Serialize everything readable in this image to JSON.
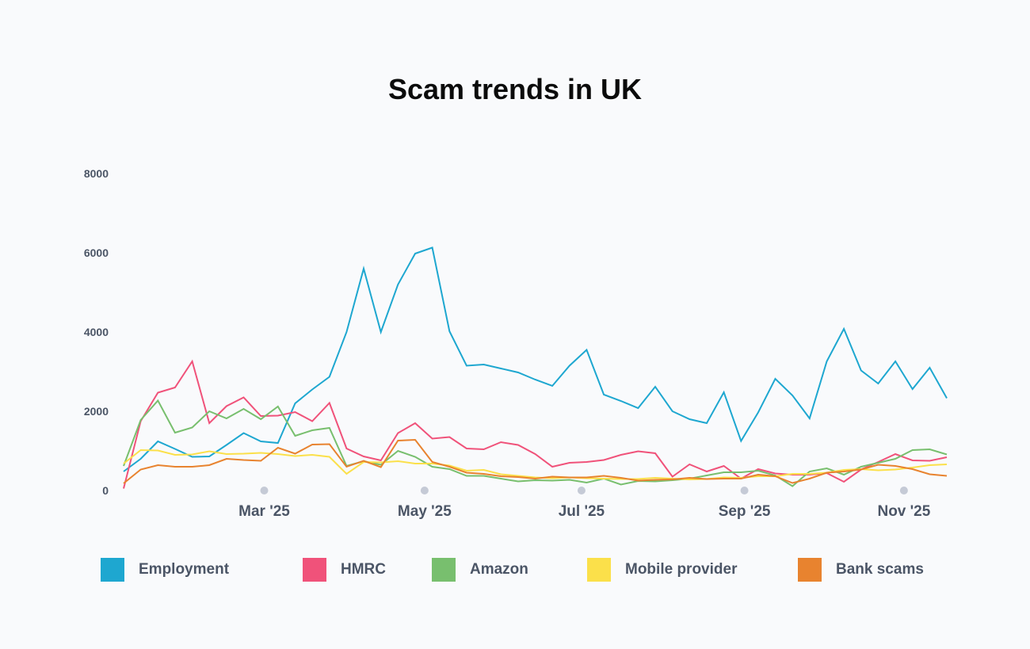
{
  "chart_data": {
    "type": "line",
    "title": "Scam trends in UK",
    "xlabel": "",
    "ylabel": "",
    "ylim": [
      0,
      8000
    ],
    "y_ticks": [
      0,
      2000,
      4000,
      6000,
      8000
    ],
    "x_tick_labels": [
      "Mar '25",
      "May '25",
      "Jul '25",
      "Sep '25",
      "Nov '25"
    ],
    "grid": true,
    "legend_position": "bottom",
    "series": [
      {
        "name": "Employment",
        "color": "#1ea7d0",
        "values": [
          480,
          800,
          1240,
          1050,
          850,
          860,
          1150,
          1450,
          1240,
          1200,
          2200,
          2550,
          2870,
          4000,
          5600,
          4000,
          5200,
          5980,
          6130,
          4020,
          3150,
          3180,
          3080,
          2980,
          2800,
          2640,
          3150,
          3550,
          2420,
          2260,
          2080,
          2620,
          2000,
          1800,
          1700,
          2480,
          1250,
          1970,
          2820,
          2400,
          1820,
          3260,
          4080,
          3030,
          2700,
          3260,
          2560,
          3100,
          2330
        ]
      },
      {
        "name": "HMRC",
        "color": "#f0527a",
        "values": [
          50,
          1750,
          2470,
          2600,
          3260,
          1700,
          2130,
          2350,
          1880,
          1890,
          1980,
          1750,
          2210,
          1060,
          860,
          760,
          1450,
          1700,
          1310,
          1350,
          1060,
          1040,
          1220,
          1150,
          920,
          600,
          700,
          720,
          770,
          900,
          990,
          940,
          350,
          660,
          480,
          620,
          300,
          540,
          430,
          400,
          400,
          440,
          220,
          530,
          720,
          920,
          760,
          750,
          840
        ]
      },
      {
        "name": "Amazon",
        "color": "#78bf6e",
        "values": [
          620,
          1780,
          2270,
          1460,
          1590,
          2000,
          1820,
          2060,
          1800,
          2120,
          1380,
          1520,
          1580,
          620,
          740,
          650,
          1000,
          850,
          600,
          540,
          370,
          370,
          300,
          230,
          260,
          250,
          270,
          200,
          300,
          150,
          240,
          230,
          260,
          300,
          380,
          460,
          460,
          500,
          380,
          110,
          480,
          560,
          400,
          600,
          700,
          800,
          1020,
          1040,
          910
        ]
      },
      {
        "name": "Mobile provider",
        "color": "#fbe04a",
        "values": [
          680,
          1020,
          1010,
          900,
          910,
          990,
          920,
          930,
          950,
          920,
          870,
          900,
          850,
          420,
          720,
          710,
          740,
          680,
          680,
          630,
          500,
          520,
          410,
          370,
          330,
          310,
          330,
          310,
          300,
          290,
          290,
          320,
          300,
          280,
          290,
          330,
          320,
          360,
          360,
          420,
          420,
          450,
          520,
          540,
          510,
          530,
          580,
          640,
          660
        ]
      },
      {
        "name": "Bank scams",
        "color": "#e8832f",
        "values": [
          180,
          530,
          640,
          600,
          600,
          640,
          800,
          770,
          750,
          1080,
          930,
          1160,
          1170,
          600,
          750,
          590,
          1260,
          1280,
          720,
          600,
          450,
          420,
          360,
          340,
          300,
          350,
          330,
          330,
          370,
          320,
          250,
          270,
          280,
          320,
          290,
          300,
          300,
          400,
          360,
          190,
          300,
          450,
          480,
          530,
          650,
          620,
          540,
          410,
          370
        ]
      }
    ]
  }
}
